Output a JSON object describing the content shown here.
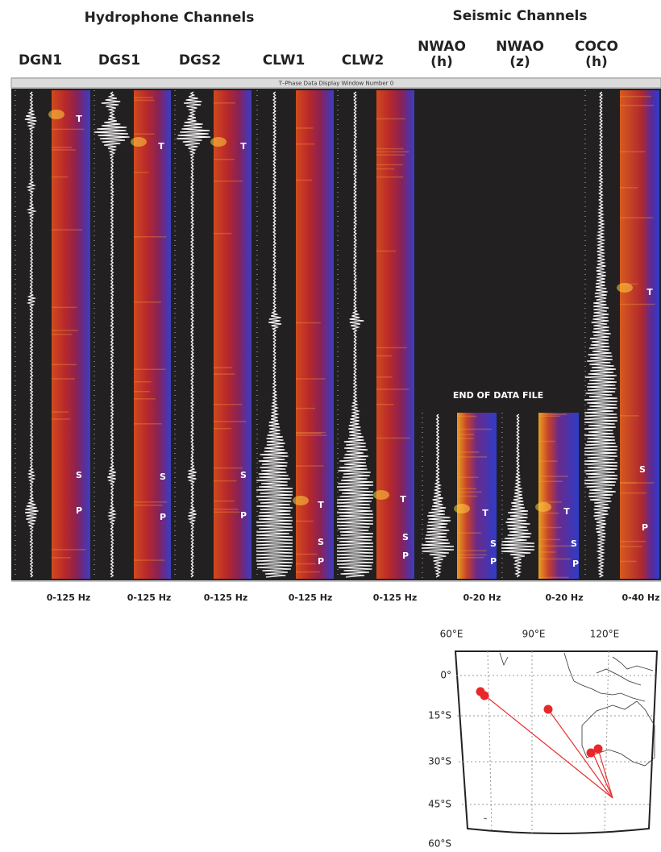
{
  "groups": {
    "hydrophone": "Hydrophone Channels",
    "seismic": "Seismic Channels"
  },
  "window_title": "T–Phase Data Display  Window Number 0",
  "end_of_data": "END OF DATA FILE",
  "channels": [
    {
      "name": "DGN1",
      "bandwidth": "0-125 Hz",
      "phases": [
        "T",
        "S",
        "P"
      ]
    },
    {
      "name": "DGS1",
      "bandwidth": "0-125 Hz",
      "phases": [
        "T",
        "S",
        "P"
      ]
    },
    {
      "name": "DGS2",
      "bandwidth": "0-125 Hz",
      "phases": [
        "T",
        "S",
        "P"
      ]
    },
    {
      "name": "CLW1",
      "bandwidth": "0-125 Hz",
      "phases": [
        "T",
        "S",
        "P"
      ]
    },
    {
      "name": "CLW2",
      "bandwidth": "0-125 Hz",
      "phases": [
        "T",
        "S",
        "P"
      ]
    },
    {
      "name": "NWAO",
      "component": "(h)",
      "bandwidth": "0-20 Hz",
      "phases": [
        "T",
        "S",
        "P"
      ]
    },
    {
      "name": "NWAO",
      "component": "(z)",
      "bandwidth": "0-20 Hz",
      "phases": [
        "T",
        "S",
        "P"
      ]
    },
    {
      "name": "COCO",
      "component": "(h)",
      "bandwidth": "0-40 Hz",
      "phases": [
        "T",
        "S",
        "P"
      ]
    }
  ],
  "map": {
    "lon_labels": [
      "60°E",
      "90°E",
      "120°E"
    ],
    "lat_labels": [
      "0°",
      "15°S",
      "30°S",
      "45°S",
      "60°S"
    ]
  }
}
